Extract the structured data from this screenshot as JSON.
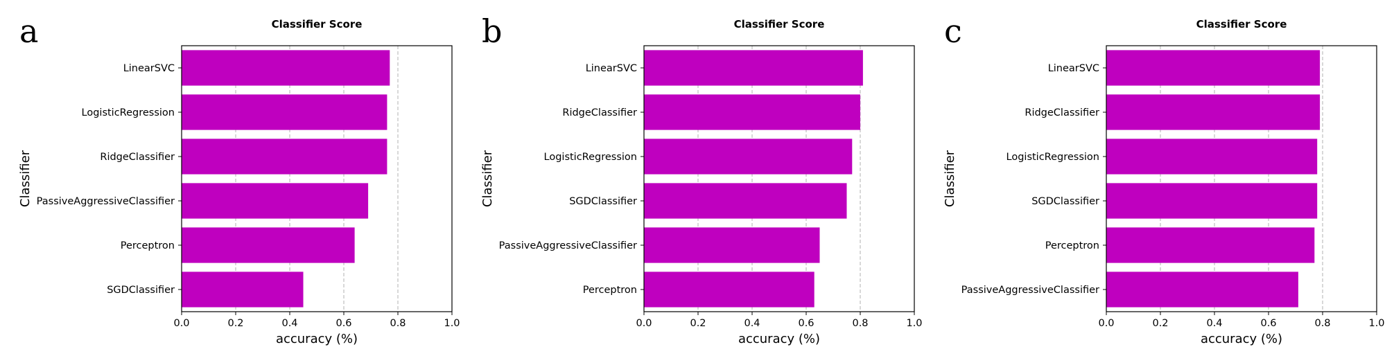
{
  "colors": {
    "bar": "#bf00bf",
    "grid": "#b0b0b0",
    "axis": "#000000"
  },
  "chart_data": [
    {
      "panel": "a",
      "type": "bar",
      "orientation": "horizontal",
      "title": "Classifier Score",
      "xlabel": "accuracy (%)",
      "ylabel": "Classifier",
      "xlim": [
        0,
        1.0
      ],
      "xticks": [
        "0.0",
        "0.2",
        "0.4",
        "0.6",
        "0.8",
        "1.0"
      ],
      "grid": "x-dashed",
      "categories": [
        "LinearSVC",
        "LogisticRegression",
        "RidgeClassifier",
        "PassiveAggressiveClassifier",
        "Perceptron",
        "SGDClassifier"
      ],
      "values": [
        0.77,
        0.76,
        0.76,
        0.69,
        0.64,
        0.45
      ]
    },
    {
      "panel": "b",
      "type": "bar",
      "orientation": "horizontal",
      "title": "Classifier Score",
      "xlabel": "accuracy (%)",
      "ylabel": "Classifier",
      "xlim": [
        0,
        1.0
      ],
      "xticks": [
        "0.0",
        "0.2",
        "0.4",
        "0.6",
        "0.8",
        "1.0"
      ],
      "grid": "x-dashed",
      "categories": [
        "LinearSVC",
        "RidgeClassifier",
        "LogisticRegression",
        "SGDClassifier",
        "PassiveAggressiveClassifier",
        "Perceptron"
      ],
      "values": [
        0.81,
        0.8,
        0.77,
        0.75,
        0.65,
        0.63
      ]
    },
    {
      "panel": "c",
      "type": "bar",
      "orientation": "horizontal",
      "title": "Classifier Score",
      "xlabel": "accuracy (%)",
      "ylabel": "Classifier",
      "xlim": [
        0,
        1.0
      ],
      "xticks": [
        "0.0",
        "0.2",
        "0.4",
        "0.6",
        "0.8",
        "1.0"
      ],
      "grid": "x-dashed",
      "categories": [
        "LinearSVC",
        "RidgeClassifier",
        "LogisticRegression",
        "SGDClassifier",
        "Perceptron",
        "PassiveAggressiveClassifier"
      ],
      "values": [
        0.79,
        0.79,
        0.78,
        0.78,
        0.77,
        0.71
      ]
    }
  ]
}
